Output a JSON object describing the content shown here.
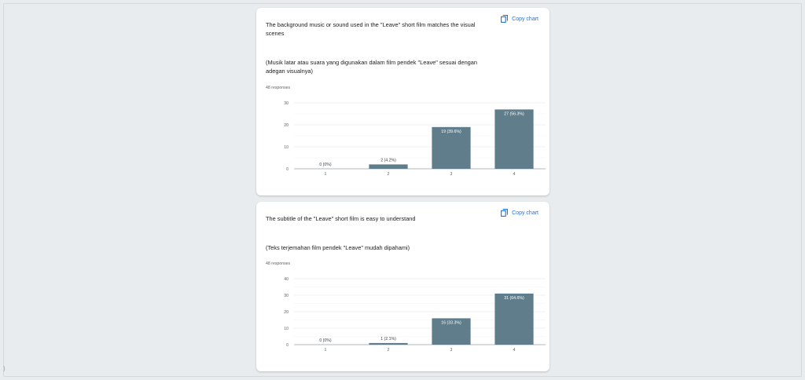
{
  "cards": [
    {
      "copy_label": "Copy chart",
      "title": "The background music or sound used in the \"Leave\" short film matches the visual scenes",
      "subtitle": "(Musik latar atau suara yang digunakan dalam film pendek \"Leave\" sesuai dengan adegan visualnya)",
      "responses": "48 responses",
      "chart_data": {
        "type": "bar",
        "categories": [
          "1",
          "2",
          "3",
          "4"
        ],
        "values": [
          0,
          2,
          19,
          27
        ],
        "data_labels": [
          "0 (0%)",
          "2 (4.2%)",
          "19 (39.6%)",
          "27 (56.3%)"
        ],
        "yticks": [
          0,
          10,
          20,
          30
        ],
        "ylim": [
          0,
          30
        ],
        "bar_color": "#607d8b",
        "grid": true
      }
    },
    {
      "copy_label": "Copy chart",
      "title": "The subtitle of the \"Leave\" short film is easy to understand",
      "subtitle": "(Teks terjemahan film pendek \"Leave\" mudah dipahami)",
      "responses": "48 responses",
      "chart_data": {
        "type": "bar",
        "categories": [
          "1",
          "2",
          "3",
          "4"
        ],
        "values": [
          0,
          1,
          16,
          31
        ],
        "data_labels": [
          "0 (0%)",
          "1 (2.1%)",
          "16 (33.3%)",
          "31 (64.6%)"
        ],
        "yticks": [
          0,
          10,
          20,
          30,
          40
        ],
        "ylim": [
          0,
          40
        ],
        "bar_color": "#607d8b",
        "grid": true
      }
    }
  ],
  "colors": {
    "accent": "#1a73e8",
    "bar": "#607d8b"
  }
}
